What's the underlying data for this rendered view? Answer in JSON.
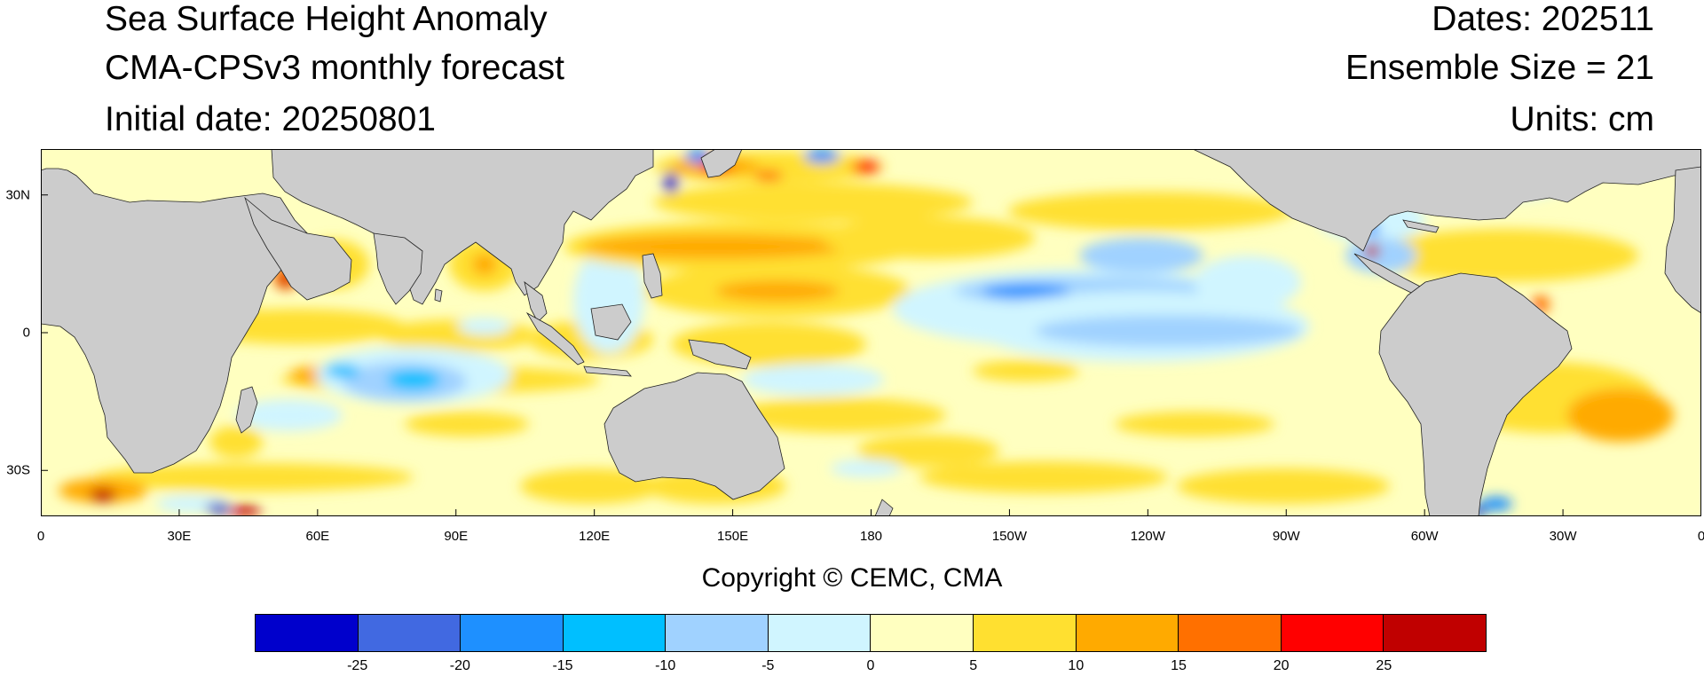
{
  "titles": {
    "left": [
      "Sea Surface Height Anomaly",
      "CMA-CPSv3 monthly forecast",
      "Initial date: 20250801"
    ],
    "right": [
      "Dates: 202511",
      "Ensemble Size = 21",
      "Units: cm"
    ]
  },
  "map": {
    "projection": "cylindrical-equidistant",
    "lon_range": [
      0,
      360
    ],
    "lat_range": [
      -40,
      40
    ],
    "land_color": "#cccccc",
    "ocean_base_color": "#ffffc0",
    "lat_ticks": [
      "30N",
      "0",
      "30S"
    ],
    "lon_ticks": [
      "0",
      "30E",
      "60E",
      "90E",
      "120E",
      "150E",
      "180",
      "150W",
      "120W",
      "90W",
      "60W",
      "30W",
      "0"
    ]
  },
  "copyright": "Copyright © CEMC, CMA",
  "colorbar": {
    "colors": [
      "#0000cc",
      "#4169e1",
      "#1e90ff",
      "#00bfff",
      "#a0d2ff",
      "#d0f5ff",
      "#ffffc0",
      "#ffe030",
      "#ffaa00",
      "#ff7000",
      "#ff0000",
      "#c00000"
    ],
    "labels": [
      "-25",
      "-20",
      "-15",
      "-10",
      "-5",
      "0",
      "5",
      "10",
      "15",
      "20",
      "25"
    ]
  }
}
